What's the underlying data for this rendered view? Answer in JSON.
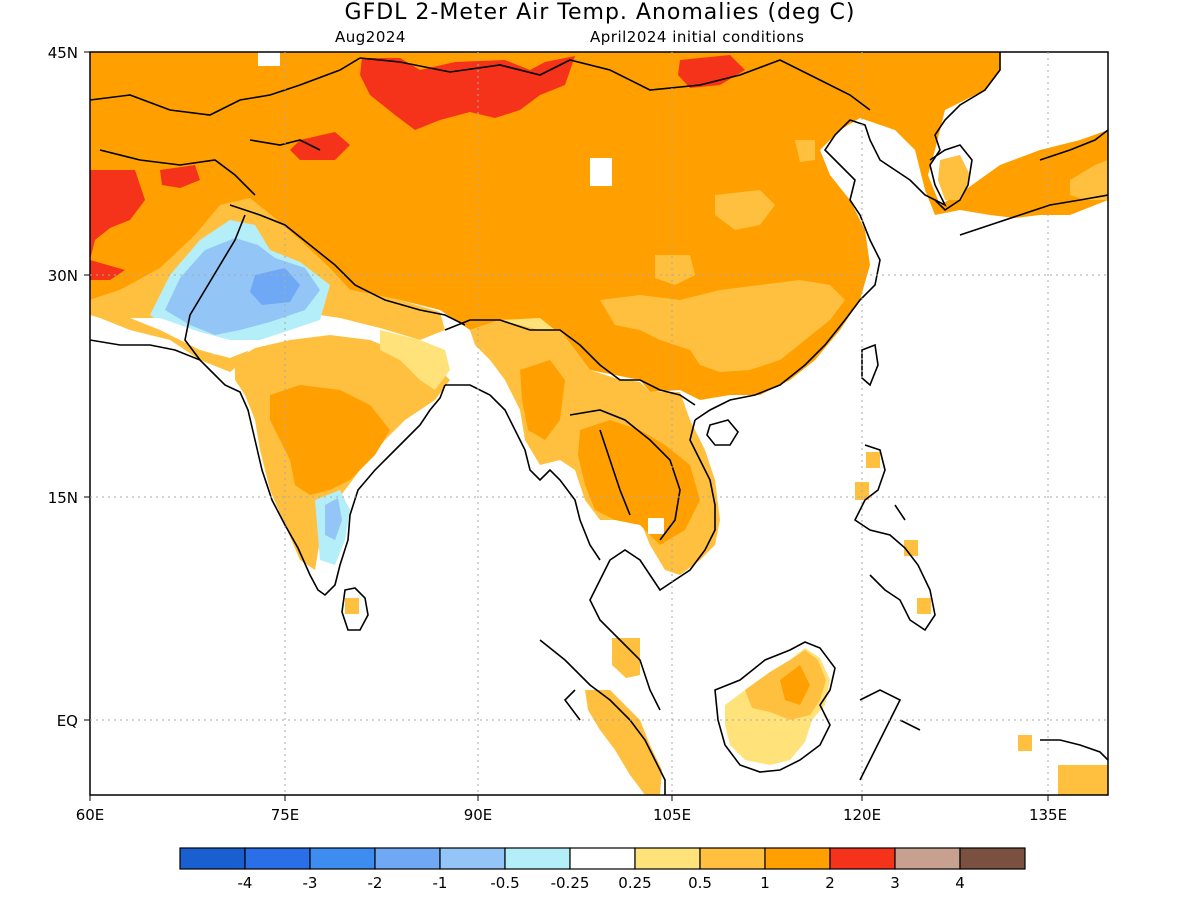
{
  "title": "GFDL 2-Meter Air Temp. Anomalies (deg C)",
  "valid_month": "Aug2024",
  "init_label": "April2024 initial conditions",
  "lon_labels": [
    "60E",
    "75E",
    "90E",
    "105E",
    "120E",
    "135E"
  ],
  "lat_labels": [
    "45N",
    "30N",
    "15N",
    "EQ"
  ],
  "colorbar": {
    "tick_labels": [
      "-4",
      "-3",
      "-2",
      "-1",
      "-0.5",
      "-0.25",
      "0.25",
      "0.5",
      "1",
      "2",
      "3",
      "4"
    ],
    "colors": [
      "#1a5fcf",
      "#2a6fe8",
      "#3d8cf0",
      "#6fa8f5",
      "#93c5f7",
      "#b4eef8",
      "#ffffff",
      "#ffe27a",
      "#ffc040",
      "#ffa000",
      "#f5321a",
      "#c8a090",
      "#7a5040"
    ]
  },
  "colors": {
    "anom_05_1": "#ffc040",
    "anom_1_2": "#ffa000",
    "anom_2_3": "#f5321a",
    "anom_025_05": "#ffe27a",
    "anom_m05_m025": "#b4eef8",
    "anom_m1_m05": "#93c5f7",
    "anom_m2_m1": "#6fa8f5",
    "coast": "#000000",
    "grid": "#aaaaaa"
  }
}
